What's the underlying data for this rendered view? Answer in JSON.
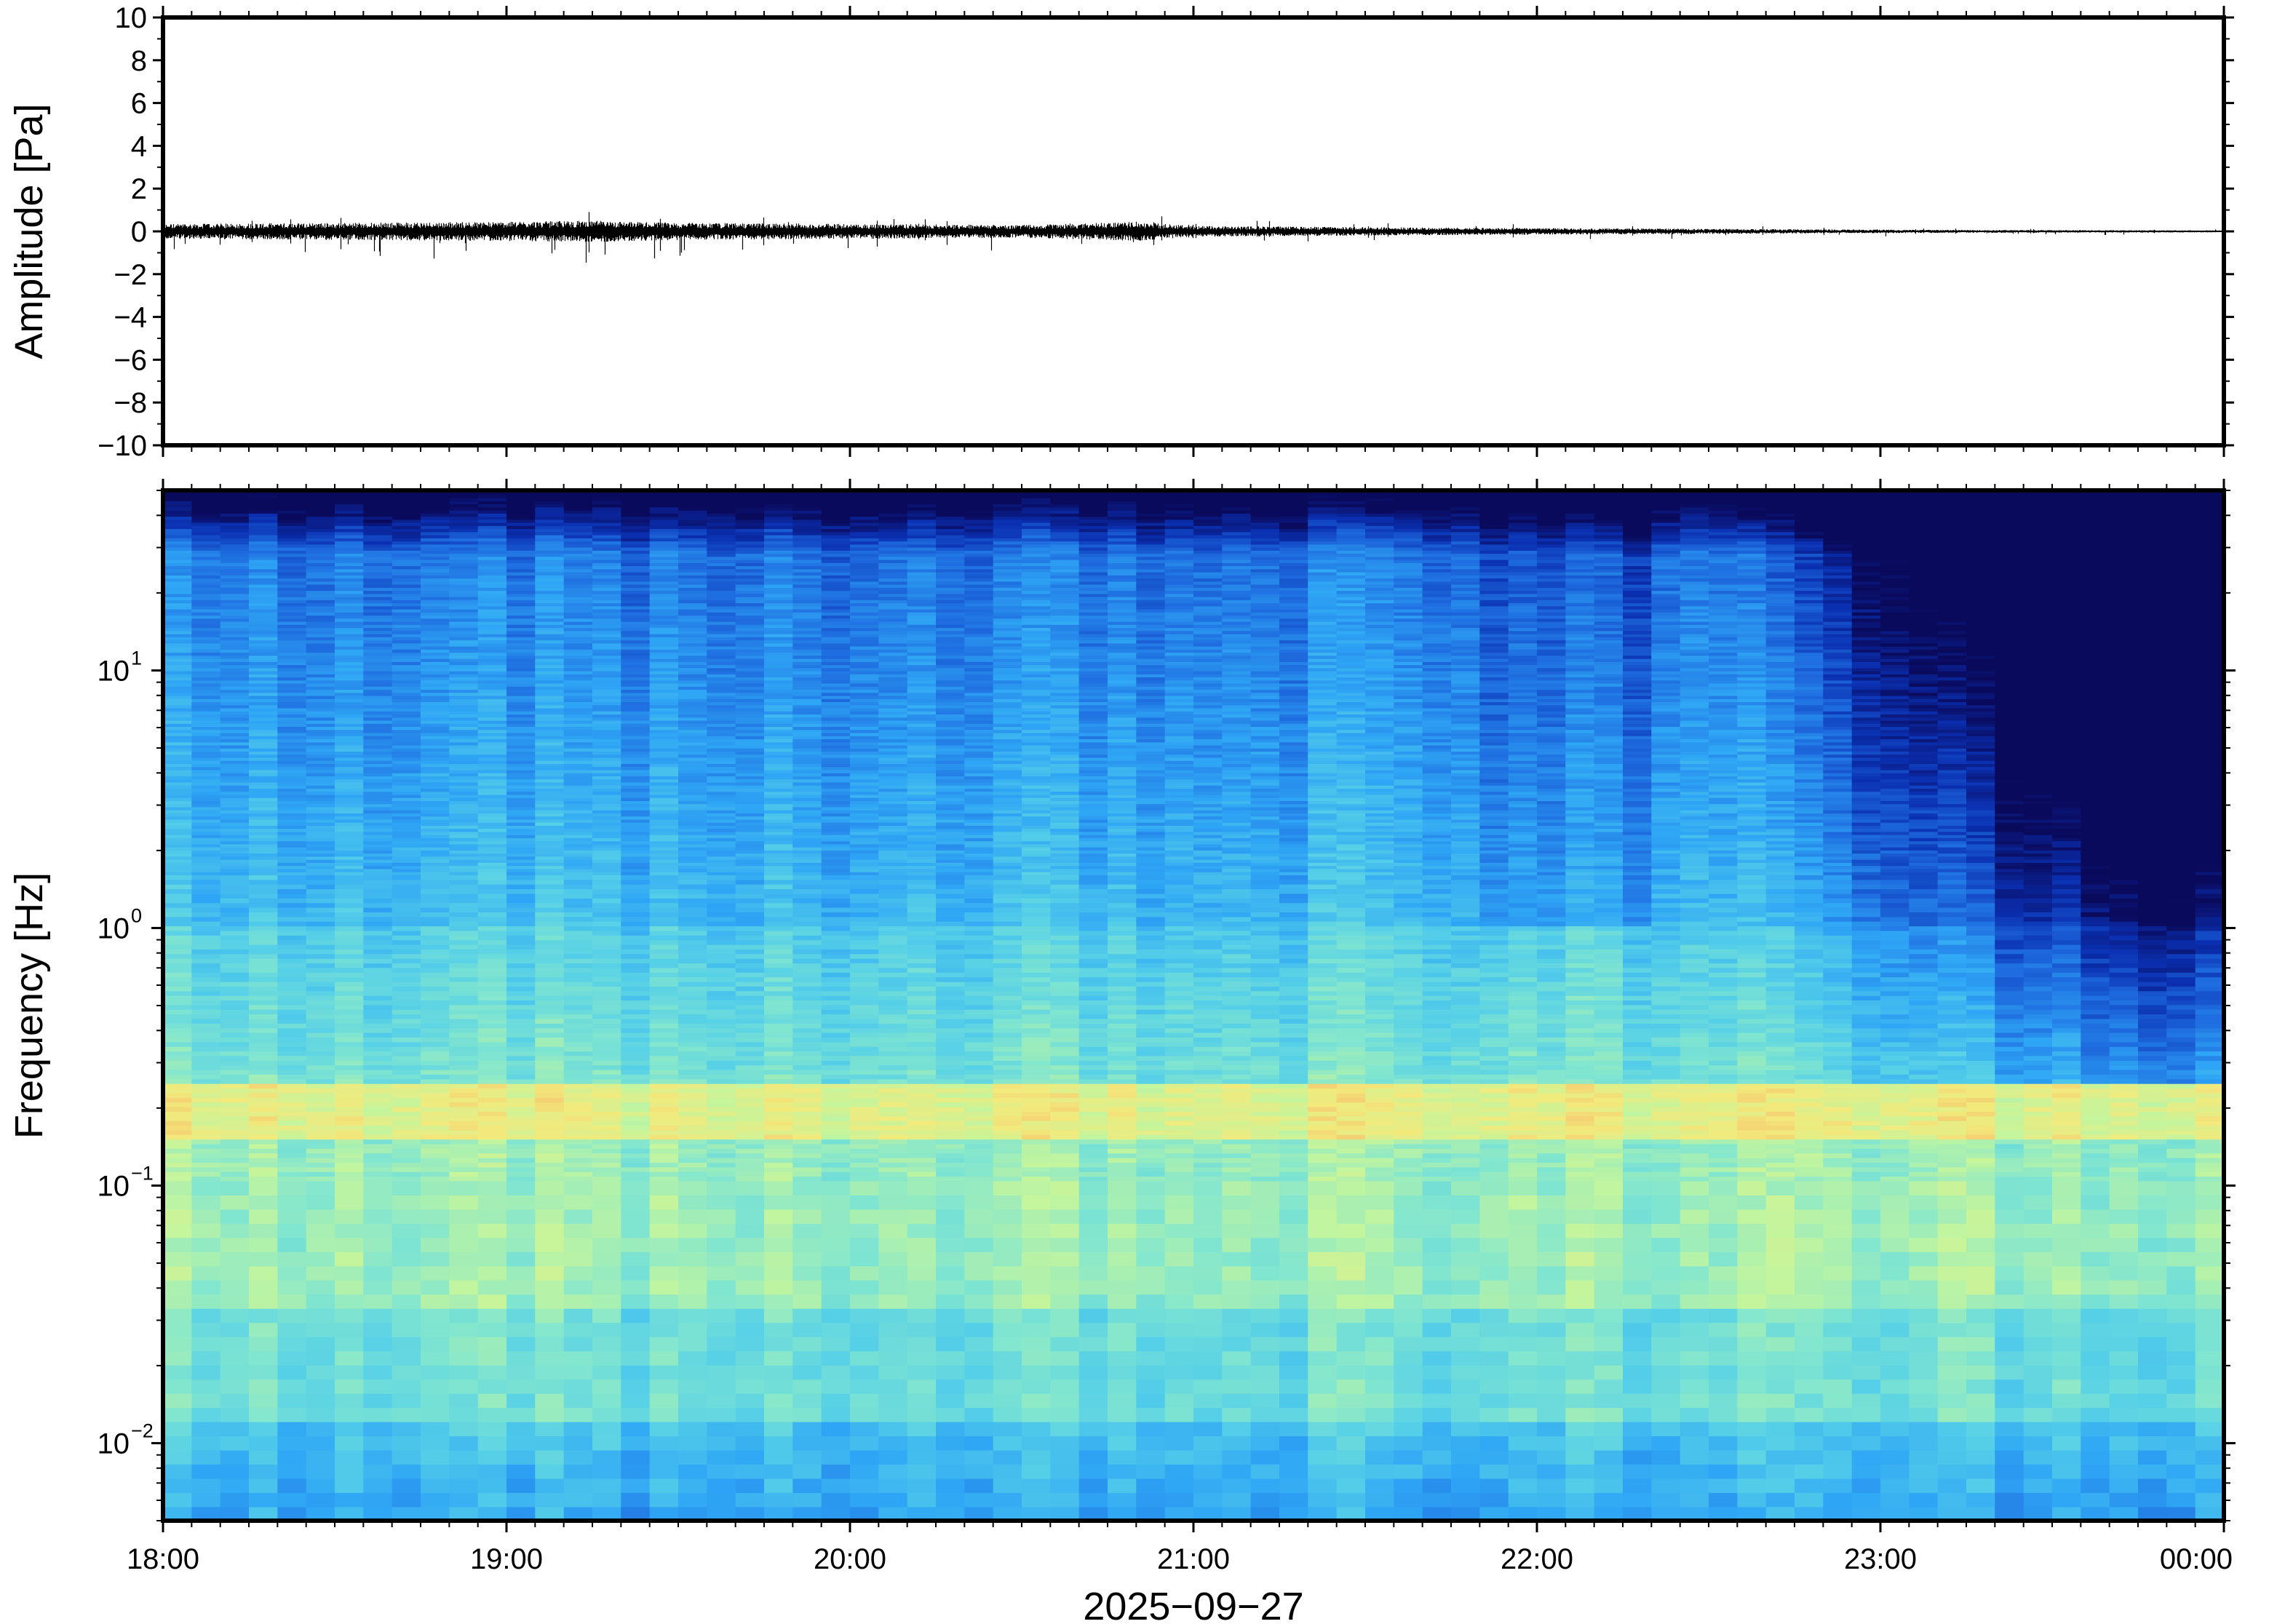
{
  "chart_data": [
    {
      "type": "line",
      "panel": "waveform",
      "ylabel": "Amplitude [Pa]",
      "ylim": [
        -10,
        10
      ],
      "yticks": [
        "10",
        "8",
        "6",
        "4",
        "2",
        "0",
        "−2",
        "−4",
        "−6",
        "−8",
        "−10"
      ],
      "x_range": [
        "2025-09-27 18:00",
        "2025-09-28 00:00"
      ],
      "series": [
        {
          "color": "#000000",
          "envelope": {
            "x": [
              "18:00",
              "18:30",
              "19:00",
              "19:15",
              "19:30",
              "20:00",
              "20:30",
              "20:50",
              "21:00",
              "21:30",
              "22:00",
              "22:30",
              "23:00",
              "23:30",
              "00:00"
            ],
            "max_abs": [
              0.35,
              0.4,
              0.45,
              0.5,
              0.4,
              0.35,
              0.3,
              0.45,
              0.25,
              0.2,
              0.15,
              0.12,
              0.08,
              0.06,
              0.05
            ]
          }
        }
      ]
    },
    {
      "type": "heatmap",
      "panel": "spectrogram",
      "ylabel": "Frequency [Hz]",
      "xlabel": "2025−09−27",
      "y_scale": "log",
      "ylim": [
        0.005,
        50
      ],
      "yticks": [
        {
          "base": "10",
          "exp": "1"
        },
        {
          "base": "10",
          "exp": "0"
        },
        {
          "base": "10",
          "exp": "−1"
        },
        {
          "base": "10",
          "exp": "−2"
        }
      ],
      "xticks": [
        "18:00",
        "19:00",
        "20:00",
        "21:00",
        "22:00",
        "23:00",
        "00:00"
      ],
      "colormap": [
        "#0a0a5c",
        "#0a2fb0",
        "#1f6ee0",
        "#2fa6f5",
        "#55cfe8",
        "#82e6cf",
        "#c3f59e",
        "#f2ea7c",
        "#f6b86a"
      ],
      "features": {
        "energetic_band_hz": [
          0.15,
          0.25
        ],
        "quiet_high_freq_after": "23:15"
      }
    }
  ]
}
